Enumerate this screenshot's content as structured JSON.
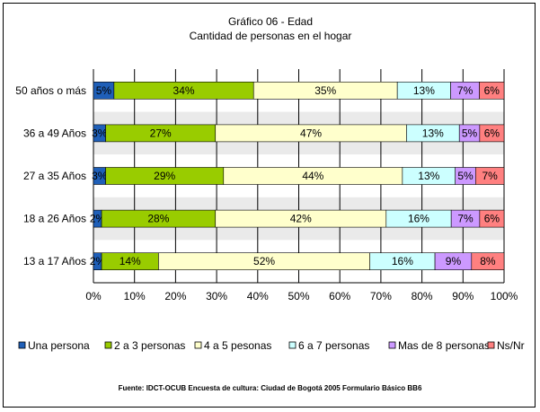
{
  "chart_data": {
    "type": "bar",
    "orientation": "horizontal",
    "stacked": "percent",
    "title": "Gráfico 06 - Edad",
    "subtitle": "Cantidad de personas en el hogar",
    "categories": [
      "50 años o más",
      "36 a 49 Años",
      "27 a 35 Años",
      "18 a 26 Años",
      "13 a 17 Años"
    ],
    "series": [
      {
        "name": "Una persona",
        "color": "#1f5fb8",
        "values": [
          5,
          3,
          3,
          2,
          2
        ],
        "labels": [
          "5%",
          "3%",
          "3%",
          "2%",
          "2%"
        ]
      },
      {
        "name": "2 a 3 personas",
        "color": "#99cc00",
        "values": [
          34,
          27,
          29,
          28,
          14
        ],
        "labels": [
          "34%",
          "27%",
          "29%",
          "28%",
          "14%"
        ]
      },
      {
        "name": "4 a 5 pesonas",
        "color": "#ffffcc",
        "values": [
          35,
          47,
          44,
          42,
          52
        ],
        "labels": [
          "35%",
          "47%",
          "44%",
          "42%",
          "52%"
        ]
      },
      {
        "name": "6 a 7 personas",
        "color": "#ccffff",
        "values": [
          13,
          13,
          13,
          16,
          16
        ],
        "labels": [
          "13%",
          "13%",
          "13%",
          "16%",
          "16%"
        ]
      },
      {
        "name": "Mas de 8 personas",
        "color": "#cc99ff",
        "values": [
          7,
          5,
          5,
          7,
          9
        ],
        "labels": [
          "7%",
          "5%",
          "5%",
          "7%",
          "9%"
        ]
      },
      {
        "name": "Ns/Nr",
        "color": "#ff8080",
        "values": [
          6,
          6,
          7,
          6,
          8
        ],
        "labels": [
          "6%",
          "6%",
          "7%",
          "6%",
          "8%"
        ]
      }
    ],
    "xticks": [
      "0%",
      "10%",
      "20%",
      "30%",
      "40%",
      "50%",
      "60%",
      "70%",
      "80%",
      "90%",
      "100%"
    ],
    "xlim": [
      0,
      100
    ],
    "grid": true,
    "legend": "bottom"
  },
  "source_note": "Fuente: IDCT-OCUB Encuesta de cultura: Ciudad de Bogotá 2005 Formulario Básico BB6"
}
